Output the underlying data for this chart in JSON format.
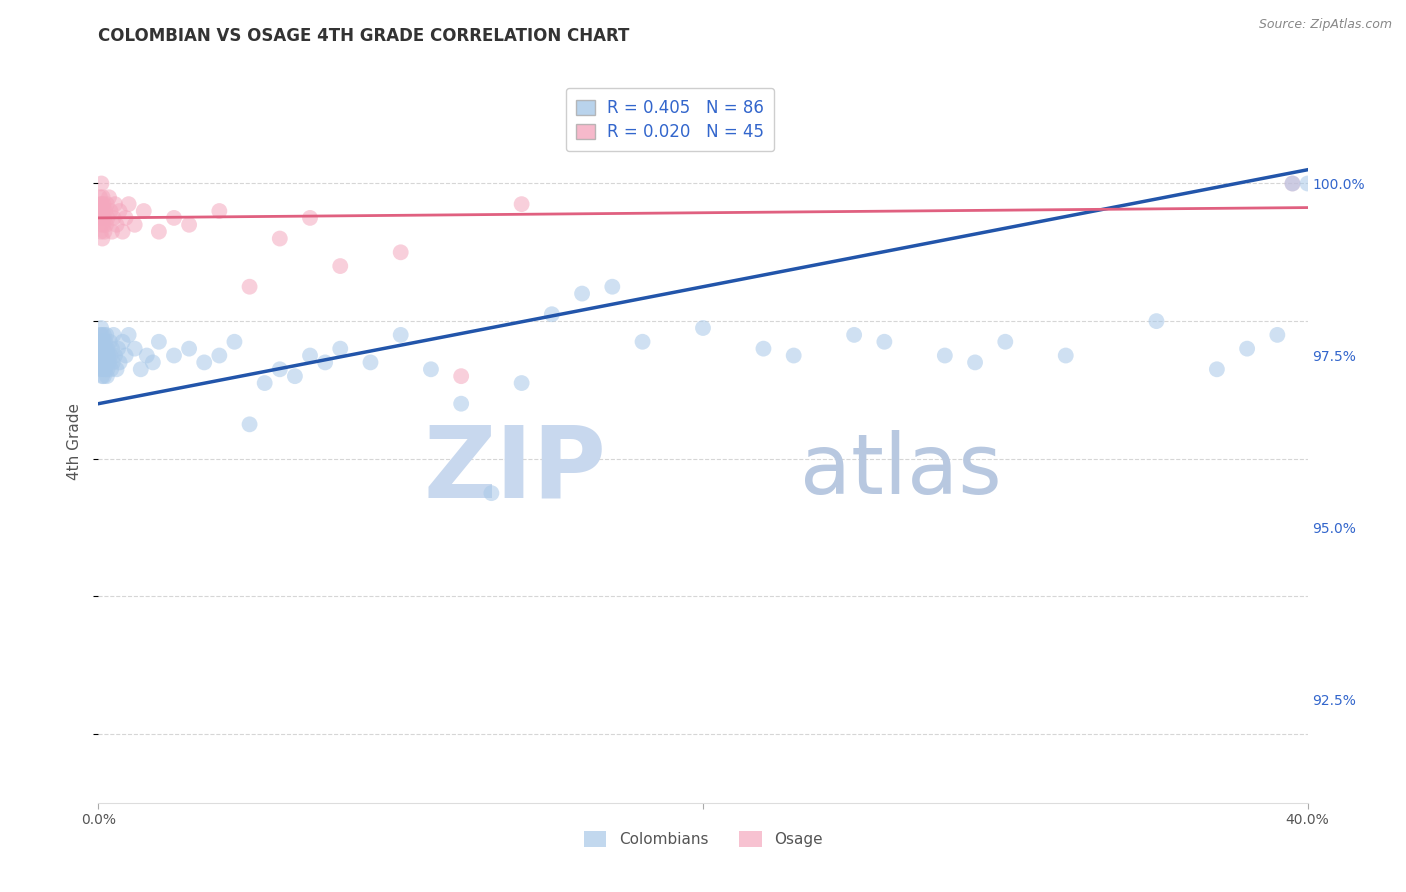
{
  "title": "COLOMBIAN VS OSAGE 4TH GRADE CORRELATION CHART",
  "source_text": "Source: ZipAtlas.com",
  "ylabel": "4th Grade",
  "xmin": 0.0,
  "xmax": 40.0,
  "ymin": 91.0,
  "ymax": 101.5,
  "yticks": [
    92.5,
    95.0,
    97.5,
    100.0
  ],
  "ytick_labels": [
    "92.5%",
    "95.0%",
    "97.5%",
    "100.0%"
  ],
  "legend_entries": [
    {
      "label": "R = 0.405   N = 86",
      "color": "#a8c8e8"
    },
    {
      "label": "R = 0.020   N = 45",
      "color": "#f4a8be"
    }
  ],
  "blue_scatter_x": [
    0.05,
    0.05,
    0.06,
    0.07,
    0.08,
    0.08,
    0.09,
    0.1,
    0.1,
    0.1,
    0.11,
    0.12,
    0.13,
    0.14,
    0.15,
    0.15,
    0.16,
    0.17,
    0.18,
    0.18,
    0.2,
    0.22,
    0.22,
    0.24,
    0.25,
    0.26,
    0.28,
    0.3,
    0.3,
    0.32,
    0.35,
    0.38,
    0.4,
    0.42,
    0.45,
    0.48,
    0.5,
    0.55,
    0.6,
    0.65,
    0.7,
    0.8,
    0.9,
    1.0,
    1.2,
    1.4,
    1.6,
    1.8,
    2.0,
    2.5,
    3.0,
    3.5,
    4.0,
    4.5,
    5.0,
    6.0,
    7.0,
    8.0,
    9.0,
    10.0,
    11.0,
    12.0,
    14.0,
    15.0,
    16.0,
    18.0,
    20.0,
    22.0,
    25.0,
    28.0,
    30.0,
    32.0,
    35.0,
    37.0,
    38.0,
    39.0,
    39.5,
    40.0,
    13.0,
    17.0,
    6.5,
    7.5,
    5.5,
    23.0,
    26.0,
    29.0
  ],
  "blue_scatter_y": [
    97.8,
    97.5,
    97.6,
    97.4,
    97.7,
    97.3,
    97.9,
    97.6,
    97.5,
    97.4,
    97.8,
    97.2,
    97.6,
    97.5,
    97.7,
    97.3,
    97.4,
    97.6,
    97.8,
    97.2,
    97.5,
    97.7,
    97.3,
    97.6,
    97.4,
    97.8,
    97.2,
    97.6,
    97.3,
    97.5,
    97.4,
    97.7,
    97.5,
    97.3,
    97.6,
    97.4,
    97.8,
    97.5,
    97.3,
    97.6,
    97.4,
    97.7,
    97.5,
    97.8,
    97.6,
    97.3,
    97.5,
    97.4,
    97.7,
    97.5,
    97.6,
    97.4,
    97.5,
    97.7,
    96.5,
    97.3,
    97.5,
    97.6,
    97.4,
    97.8,
    97.3,
    96.8,
    97.1,
    98.1,
    98.4,
    97.7,
    97.9,
    97.6,
    97.8,
    97.5,
    97.7,
    97.5,
    98.0,
    97.3,
    97.6,
    97.8,
    100.0,
    100.0,
    95.5,
    98.5,
    97.2,
    97.4,
    97.1,
    97.5,
    97.7,
    97.4
  ],
  "pink_scatter_x": [
    0.04,
    0.05,
    0.06,
    0.07,
    0.08,
    0.09,
    0.1,
    0.1,
    0.11,
    0.12,
    0.13,
    0.14,
    0.15,
    0.16,
    0.17,
    0.18,
    0.2,
    0.22,
    0.25,
    0.28,
    0.3,
    0.35,
    0.4,
    0.45,
    0.5,
    0.55,
    0.6,
    0.7,
    0.8,
    0.9,
    1.0,
    1.2,
    1.5,
    2.0,
    2.5,
    3.0,
    4.0,
    5.0,
    6.0,
    7.0,
    8.0,
    10.0,
    12.0,
    14.0,
    39.5
  ],
  "pink_scatter_y": [
    99.6,
    99.8,
    99.5,
    99.7,
    99.3,
    99.6,
    100.0,
    99.4,
    99.7,
    99.5,
    99.2,
    99.8,
    99.6,
    99.4,
    99.7,
    99.5,
    99.3,
    99.6,
    99.4,
    99.7,
    99.5,
    99.8,
    99.6,
    99.3,
    99.5,
    99.7,
    99.4,
    99.6,
    99.3,
    99.5,
    99.7,
    99.4,
    99.6,
    99.3,
    99.5,
    99.4,
    99.6,
    98.5,
    99.2,
    99.5,
    98.8,
    99.0,
    97.2,
    99.7,
    100.0
  ],
  "blue_line_x": [
    0.0,
    40.0
  ],
  "blue_line_y": [
    96.8,
    100.2
  ],
  "pink_line_x": [
    0.0,
    40.0
  ],
  "pink_line_y": [
    99.5,
    99.65
  ],
  "blue_color": "#a8c8e8",
  "pink_color": "#f4a8be",
  "blue_line_color": "#2255aa",
  "pink_line_color": "#e06080",
  "grid_color": "#cccccc",
  "watermark_zip": "ZIP",
  "watermark_atlas": "atlas",
  "watermark_color_zip": "#c8d8ee",
  "watermark_color_atlas": "#b8c8e0",
  "title_color": "#333333",
  "source_color": "#888888",
  "tick_color": "#3366cc"
}
